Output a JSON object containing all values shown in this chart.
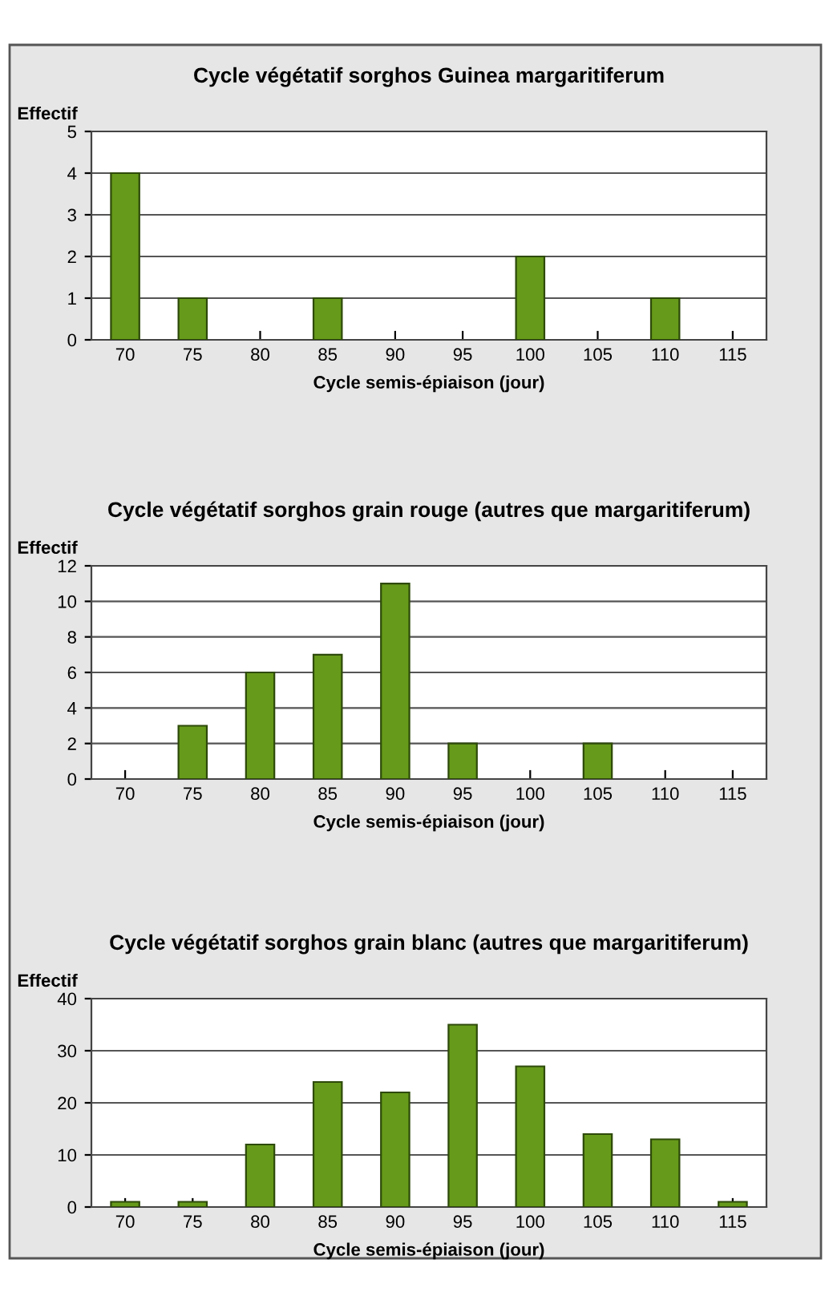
{
  "chart_data": [
    {
      "type": "bar",
      "title": "Cycle végétatif sorghos Guinea margaritiferum",
      "ylabel": "Effectif",
      "xlabel": "Cycle semis-épiaison (jour)",
      "categories": [
        "70",
        "75",
        "80",
        "85",
        "90",
        "95",
        "100",
        "105",
        "110",
        "115"
      ],
      "values": [
        4,
        1,
        0,
        1,
        0,
        0,
        2,
        0,
        1,
        0
      ],
      "color": "#669a1a",
      "ylim": [
        0,
        5
      ],
      "yticks": [
        0,
        1,
        2,
        3,
        4,
        5
      ],
      "grid": "y"
    },
    {
      "type": "bar",
      "title": "Cycle végétatif sorghos grain rouge (autres que margaritiferum)",
      "ylabel": "Effectif",
      "xlabel": "Cycle semis-épiaison (jour)",
      "categories": [
        "70",
        "75",
        "80",
        "85",
        "90",
        "95",
        "100",
        "105",
        "110",
        "115"
      ],
      "values": [
        0,
        3,
        6,
        7,
        11,
        2,
        0,
        2,
        0,
        0
      ],
      "color": "#669a1a",
      "ylim": [
        0,
        12
      ],
      "yticks": [
        0,
        2,
        4,
        6,
        8,
        10,
        12
      ],
      "grid": "y"
    },
    {
      "type": "bar",
      "title": "Cycle végétatif sorghos grain blanc (autres que margaritiferum)",
      "ylabel": "Effectif",
      "xlabel": "Cycle semis-épiaison (jour)",
      "categories": [
        "70",
        "75",
        "80",
        "85",
        "90",
        "95",
        "100",
        "105",
        "110",
        "115"
      ],
      "values": [
        1,
        1,
        12,
        24,
        22,
        35,
        27,
        14,
        13,
        1
      ],
      "color": "#669a1a",
      "ylim": [
        0,
        40
      ],
      "yticks": [
        0,
        10,
        20,
        30,
        40
      ],
      "grid": "y"
    }
  ]
}
